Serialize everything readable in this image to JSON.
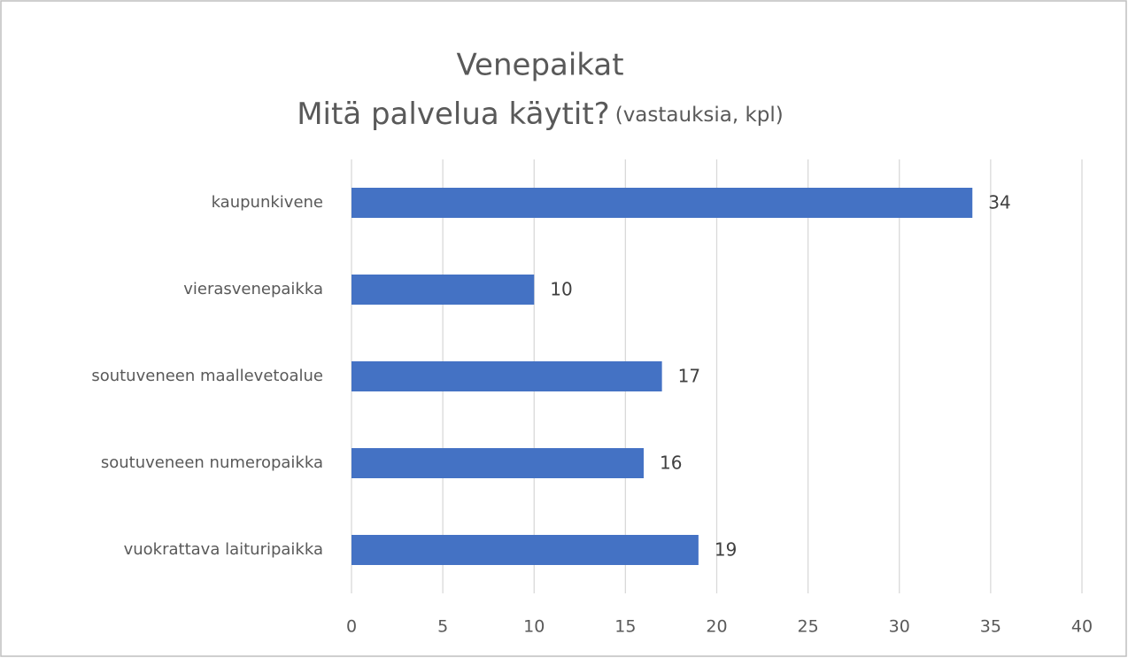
{
  "chart_data": {
    "type": "hbar",
    "title": "Venepaikat",
    "subtitle": "Mitä palvelua käytit?",
    "subtitle_note": "(vastauksia, kpl)",
    "categories": [
      "kaupunkivene",
      "vierasvenepaikka",
      "soutuveneen maallevetoalue",
      "soutuveneen numeropaikka",
      "vuokrattava laituripaikka"
    ],
    "values": [
      34,
      10,
      17,
      16,
      19
    ],
    "color": "#4472c4",
    "xlim": [
      0,
      40
    ],
    "xticks": [
      0,
      5,
      10,
      15,
      20,
      25,
      30,
      35,
      40
    ],
    "grid": true
  }
}
